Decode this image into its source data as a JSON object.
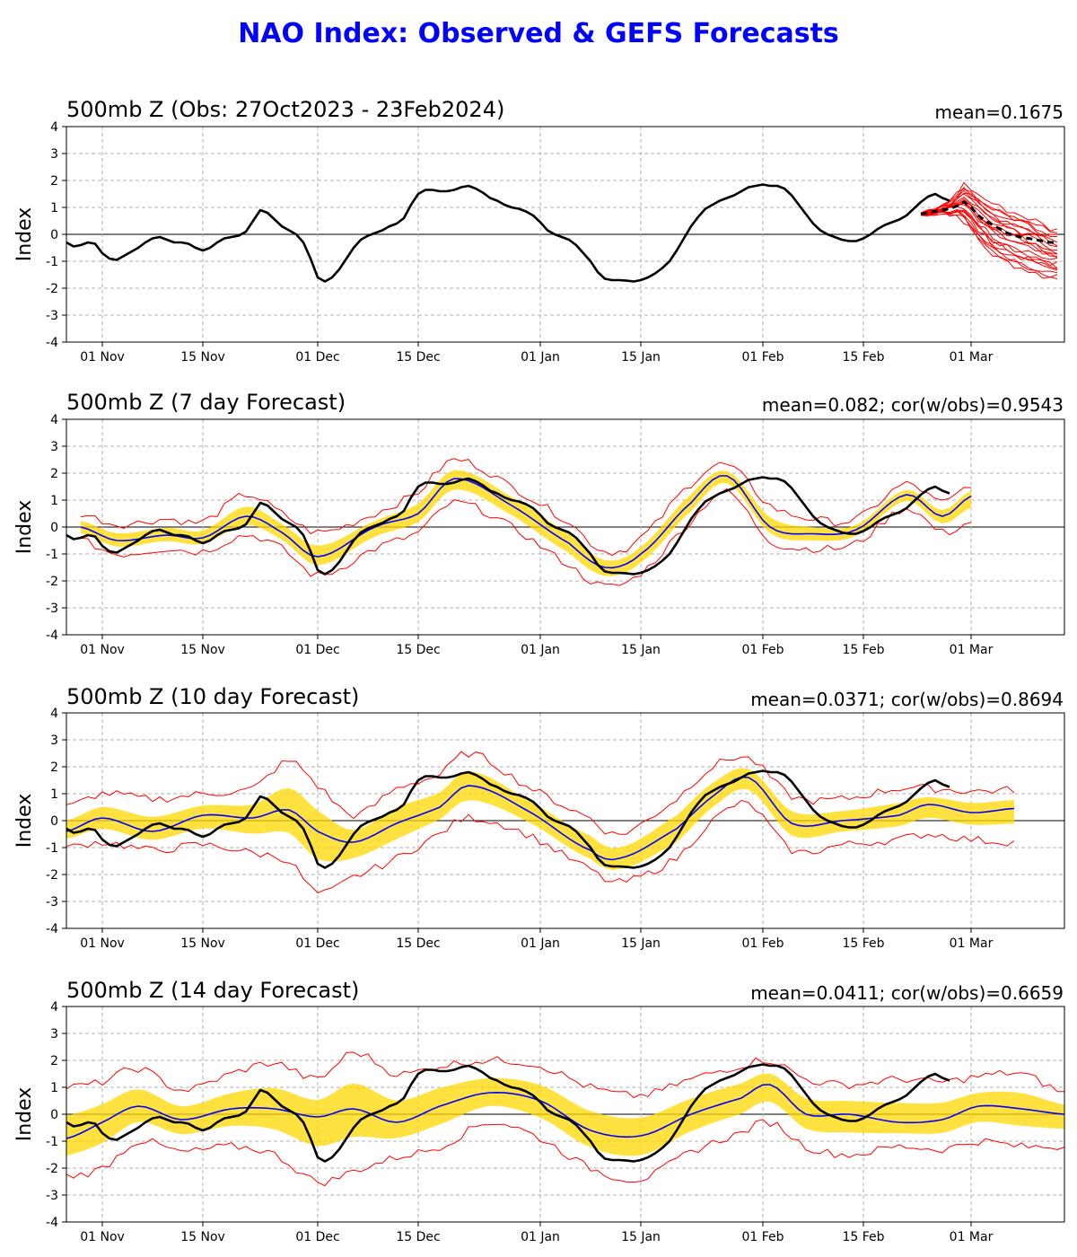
{
  "title": "NAO Index: Observed & GEFS Forecasts",
  "colors": {
    "title": "#0000ff",
    "observed": "#000000",
    "forecast_mean": "#0000ff",
    "spread_band": "#ffd700",
    "extremes": "#ff0000",
    "members": "#ff0000"
  },
  "chart_data": [
    {
      "type": "line",
      "title": "500mb Z (Obs: 27Oct2023 - 23Feb2024)",
      "stat": "mean=0.1675",
      "ylabel": "Index",
      "xlabel": "",
      "ylim": [
        -4,
        4
      ],
      "xlim": [
        "2023-10-27",
        "2024-03-14"
      ],
      "yticks": [
        -4,
        -3,
        -2,
        -1,
        0,
        1,
        2,
        3,
        4
      ],
      "xticks": [
        {
          "date": "2023-11-01",
          "label": "01 Nov"
        },
        {
          "date": "2023-11-15",
          "label": "15 Nov"
        },
        {
          "date": "2023-12-01",
          "label": "01 Dec"
        },
        {
          "date": "2023-12-15",
          "label": "15 Dec"
        },
        {
          "date": "2024-01-01",
          "label": "01 Jan"
        },
        {
          "date": "2024-01-15",
          "label": "15 Jan"
        },
        {
          "date": "2024-02-01",
          "label": "01 Feb"
        },
        {
          "date": "2024-02-15",
          "label": "15 Feb"
        },
        {
          "date": "2024-03-01",
          "label": "01 Mar"
        }
      ],
      "grid": true,
      "observed": {
        "start": "2023-10-27",
        "values": [
          -0.3,
          -0.45,
          -0.4,
          -0.3,
          -0.35,
          -0.7,
          -0.9,
          -0.95,
          -0.8,
          -0.65,
          -0.5,
          -0.3,
          -0.15,
          -0.1,
          -0.2,
          -0.3,
          -0.3,
          -0.35,
          -0.5,
          -0.6,
          -0.5,
          -0.3,
          -0.15,
          -0.1,
          -0.05,
          0.1,
          0.5,
          0.9,
          0.8,
          0.55,
          0.3,
          0.15,
          0.0,
          -0.3,
          -0.9,
          -1.6,
          -1.75,
          -1.6,
          -1.3,
          -0.9,
          -0.5,
          -0.2,
          -0.05,
          0.05,
          0.15,
          0.3,
          0.4,
          0.6,
          1.1,
          1.5,
          1.65,
          1.65,
          1.6,
          1.6,
          1.65,
          1.75,
          1.8,
          1.7,
          1.55,
          1.35,
          1.25,
          1.1,
          1.0,
          0.95,
          0.85,
          0.7,
          0.45,
          0.15,
          0.0,
          -0.1,
          -0.2,
          -0.4,
          -0.7,
          -1.0,
          -1.4,
          -1.65,
          -1.7,
          -1.7,
          -1.72,
          -1.75,
          -1.7,
          -1.6,
          -1.45,
          -1.25,
          -1.0,
          -0.6,
          -0.15,
          0.3,
          0.65,
          0.95,
          1.1,
          1.25,
          1.35,
          1.45,
          1.6,
          1.75,
          1.8,
          1.85,
          1.8,
          1.8,
          1.7,
          1.45,
          1.1,
          0.75,
          0.4,
          0.15,
          0.0,
          -0.1,
          -0.2,
          -0.25,
          -0.25,
          -0.15,
          0.0,
          0.2,
          0.35,
          0.45,
          0.55,
          0.7,
          0.95,
          1.2,
          1.4,
          1.5,
          1.35,
          1.25
        ]
      },
      "ensemble": {
        "start": "2024-02-23",
        "mean": [
          0.75,
          0.8,
          0.85,
          0.9,
          0.95,
          1.05,
          1.2,
          1.0,
          0.7,
          0.5,
          0.35,
          0.2,
          0.05,
          -0.05,
          -0.1,
          -0.15,
          -0.2,
          -0.25,
          -0.3,
          -0.3
        ],
        "upper": [
          0.8,
          0.9,
          0.95,
          1.05,
          1.25,
          1.5,
          1.85,
          1.7,
          1.45,
          1.3,
          1.15,
          1.0,
          0.9,
          0.8,
          0.7,
          0.6,
          0.5,
          0.35,
          0.2,
          0.15
        ],
        "lower": [
          0.7,
          0.7,
          0.75,
          0.8,
          0.75,
          0.7,
          0.5,
          0.2,
          -0.2,
          -0.5,
          -0.75,
          -0.9,
          -1.0,
          -1.15,
          -1.25,
          -1.35,
          -1.45,
          -1.55,
          -1.6,
          -1.65
        ],
        "members": 20
      }
    },
    {
      "type": "line",
      "title": "500mb Z (7 day Forecast)",
      "stat": "mean=0.082; cor(w/obs)=0.9543",
      "ylabel": "Index",
      "xlabel": "",
      "ylim": [
        -4,
        4
      ],
      "grid": true,
      "forecast": {
        "start": "2023-10-27",
        "offsets": [
          {
            "date": "2023-10-29",
            "mean": 0.0,
            "upper": 0.5,
            "lower": -0.5
          },
          {
            "date": "2023-11-03",
            "mean": -0.5,
            "upper": 0.1,
            "lower": -1.0
          },
          {
            "date": "2023-11-10",
            "mean": -0.3,
            "upper": 0.3,
            "lower": -0.8
          },
          {
            "date": "2023-11-15",
            "mean": -0.4,
            "upper": 0.2,
            "lower": -0.9
          },
          {
            "date": "2023-11-21",
            "mean": 0.4,
            "upper": 1.2,
            "lower": -0.3
          },
          {
            "date": "2023-11-26",
            "mean": -0.2,
            "upper": 0.5,
            "lower": -0.8
          },
          {
            "date": "2023-12-01",
            "mean": -1.1,
            "upper": -0.2,
            "lower": -1.8
          },
          {
            "date": "2023-12-09",
            "mean": 0.0,
            "upper": 0.5,
            "lower": -0.8
          },
          {
            "date": "2023-12-15",
            "mean": 0.5,
            "upper": 1.3,
            "lower": -0.2
          },
          {
            "date": "2023-12-20",
            "mean": 1.8,
            "upper": 2.5,
            "lower": 0.9
          },
          {
            "date": "2023-12-28",
            "mean": 0.8,
            "upper": 1.5,
            "lower": 0.0
          },
          {
            "date": "2024-01-05",
            "mean": -0.6,
            "upper": 0.2,
            "lower": -1.4
          },
          {
            "date": "2024-01-10",
            "mean": -1.5,
            "upper": -0.9,
            "lower": -2.2
          },
          {
            "date": "2024-01-15",
            "mean": -1.0,
            "upper": -0.4,
            "lower": -1.7
          },
          {
            "date": "2024-01-22",
            "mean": 0.9,
            "upper": 1.6,
            "lower": 0.2
          },
          {
            "date": "2024-01-27",
            "mean": 1.9,
            "upper": 2.3,
            "lower": 1.3
          },
          {
            "date": "2024-02-02",
            "mean": 0.0,
            "upper": 0.8,
            "lower": -0.5
          },
          {
            "date": "2024-02-08",
            "mean": -0.25,
            "upper": 0.3,
            "lower": -0.8
          },
          {
            "date": "2024-02-14",
            "mean": -0.1,
            "upper": 0.3,
            "lower": -0.6
          },
          {
            "date": "2024-02-21",
            "mean": 1.2,
            "upper": 1.6,
            "lower": 0.7
          },
          {
            "date": "2024-02-26",
            "mean": 0.4,
            "upper": 0.9,
            "lower": -0.2
          },
          {
            "date": "2024-03-01",
            "mean": 1.15,
            "upper": 1.6,
            "lower": 0.2
          }
        ]
      }
    },
    {
      "type": "line",
      "title": "500mb Z (10 day Forecast)",
      "stat": "mean=0.0371; cor(w/obs)=0.8694",
      "ylabel": "Index",
      "xlabel": "",
      "ylim": [
        -4,
        4
      ],
      "grid": true,
      "forecast": {
        "start": "2023-10-27",
        "offsets": [
          {
            "date": "2023-10-27",
            "mean": -0.4,
            "upper": 0.5,
            "lower": -1.0
          },
          {
            "date": "2023-11-01",
            "mean": 0.1,
            "upper": 1.0,
            "lower": -0.8
          },
          {
            "date": "2023-11-08",
            "mean": -0.4,
            "upper": 0.8,
            "lower": -1.1
          },
          {
            "date": "2023-11-15",
            "mean": 0.2,
            "upper": 1.0,
            "lower": -0.9
          },
          {
            "date": "2023-11-22",
            "mean": 0.1,
            "upper": 1.2,
            "lower": -1.2
          },
          {
            "date": "2023-11-27",
            "mean": 0.4,
            "upper": 2.2,
            "lower": -1.5
          },
          {
            "date": "2023-12-01",
            "mean": -0.4,
            "upper": 1.3,
            "lower": -2.7
          },
          {
            "date": "2023-12-06",
            "mean": -0.8,
            "upper": 0.2,
            "lower": -2.1
          },
          {
            "date": "2023-12-12",
            "mean": -0.1,
            "upper": 1.2,
            "lower": -1.4
          },
          {
            "date": "2023-12-18",
            "mean": 0.5,
            "upper": 1.7,
            "lower": -0.5
          },
          {
            "date": "2023-12-22",
            "mean": 1.3,
            "upper": 2.5,
            "lower": 0.1
          },
          {
            "date": "2023-12-30",
            "mean": 0.4,
            "upper": 1.3,
            "lower": -0.5
          },
          {
            "date": "2024-01-08",
            "mean": -1.1,
            "upper": 0.1,
            "lower": -1.8
          },
          {
            "date": "2024-01-12",
            "mean": -1.4,
            "upper": -0.5,
            "lower": -2.3
          },
          {
            "date": "2024-01-20",
            "mean": -0.3,
            "upper": 0.8,
            "lower": -1.4
          },
          {
            "date": "2024-01-25",
            "mean": 0.9,
            "upper": 2.0,
            "lower": 0.0
          },
          {
            "date": "2024-01-30",
            "mean": 1.6,
            "upper": 2.3,
            "lower": 0.6
          },
          {
            "date": "2024-02-05",
            "mean": -0.1,
            "upper": 0.9,
            "lower": -1.1
          },
          {
            "date": "2024-02-12",
            "mean": 0.0,
            "upper": 0.8,
            "lower": -0.9
          },
          {
            "date": "2024-02-20",
            "mean": 0.2,
            "upper": 1.2,
            "lower": -0.7
          },
          {
            "date": "2024-02-24",
            "mean": 0.6,
            "upper": 1.2,
            "lower": -0.5
          },
          {
            "date": "2024-03-01",
            "mean": 0.3,
            "upper": 1.1,
            "lower": -0.7
          },
          {
            "date": "2024-03-07",
            "mean": 0.45,
            "upper": 1.15,
            "lower": -0.8
          }
        ]
      }
    },
    {
      "type": "line",
      "title": "500mb Z (14 day Forecast)",
      "stat": "mean=0.0411; cor(w/obs)=0.6659",
      "ylabel": "Index",
      "xlabel": "",
      "ylim": [
        -4,
        4
      ],
      "grid": true,
      "forecast": {
        "start": "2023-10-27",
        "offsets": [
          {
            "date": "2023-10-27",
            "mean": -0.9,
            "upper": 1.0,
            "lower": -2.3
          },
          {
            "date": "2023-11-01",
            "mean": -0.3,
            "upper": 1.2,
            "lower": -2.0
          },
          {
            "date": "2023-11-06",
            "mean": 0.3,
            "upper": 1.7,
            "lower": -1.0
          },
          {
            "date": "2023-11-12",
            "mean": -0.2,
            "upper": 0.9,
            "lower": -1.4
          },
          {
            "date": "2023-11-19",
            "mean": 0.2,
            "upper": 1.5,
            "lower": -1.2
          },
          {
            "date": "2023-11-25",
            "mean": 0.2,
            "upper": 1.9,
            "lower": -1.5
          },
          {
            "date": "2023-12-01",
            "mean": -0.1,
            "upper": 1.3,
            "lower": -2.5
          },
          {
            "date": "2023-12-06",
            "mean": 0.2,
            "upper": 2.3,
            "lower": -2.1
          },
          {
            "date": "2023-12-12",
            "mean": -0.3,
            "upper": 1.5,
            "lower": -1.6
          },
          {
            "date": "2023-12-18",
            "mean": 0.3,
            "upper": 1.8,
            "lower": -1.2
          },
          {
            "date": "2023-12-25",
            "mean": 0.8,
            "upper": 2.0,
            "lower": -0.3
          },
          {
            "date": "2024-01-01",
            "mean": 0.5,
            "upper": 1.8,
            "lower": -0.9
          },
          {
            "date": "2024-01-08",
            "mean": -0.6,
            "upper": 1.0,
            "lower": -2.0
          },
          {
            "date": "2024-01-15",
            "mean": -0.8,
            "upper": 0.7,
            "lower": -2.4
          },
          {
            "date": "2024-01-22",
            "mean": 0.0,
            "upper": 1.3,
            "lower": -1.4
          },
          {
            "date": "2024-01-29",
            "mean": 0.6,
            "upper": 1.8,
            "lower": -0.7
          },
          {
            "date": "2024-02-02",
            "mean": 1.1,
            "upper": 2.0,
            "lower": -0.3
          },
          {
            "date": "2024-02-07",
            "mean": 0.0,
            "upper": 1.3,
            "lower": -1.2
          },
          {
            "date": "2024-02-13",
            "mean": 0.0,
            "upper": 1.1,
            "lower": -1.5
          },
          {
            "date": "2024-02-20",
            "mean": -0.3,
            "upper": 1.3,
            "lower": -1.2
          },
          {
            "date": "2024-02-26",
            "mean": -0.2,
            "upper": 1.2,
            "lower": -1.3
          },
          {
            "date": "2024-03-02",
            "mean": 0.3,
            "upper": 1.4,
            "lower": -1.0
          },
          {
            "date": "2024-03-08",
            "mean": 0.2,
            "upper": 1.5,
            "lower": -1.2
          },
          {
            "date": "2024-03-14",
            "mean": 0.0,
            "upper": 0.8,
            "lower": -1.2
          }
        ]
      }
    }
  ]
}
